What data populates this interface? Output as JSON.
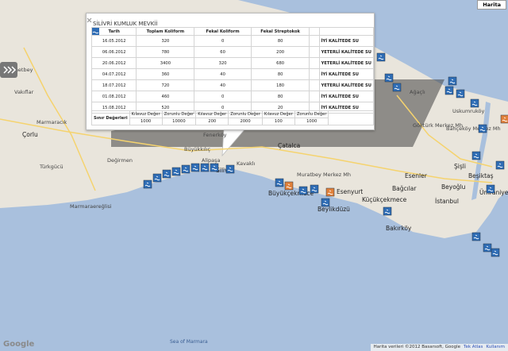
{
  "map_type": "Harita",
  "labels": [
    "Ahmetbey",
    "Vakıflar",
    "Marmaracık",
    "Çorlu",
    "Türkgücü",
    "Değirmen",
    "Marmaraereğlisi",
    "Büyükkılıç",
    "Alipaşa",
    "Fenerköy",
    "Silivri",
    "Kavaklı",
    "Çatalca",
    "Muratbey Merkez Mh",
    "Büyükçekmece",
    "Esenyurt",
    "Beylikdüzü",
    "Küçükçekmece",
    "Bakırköy",
    "Bağcılar",
    "Esenler",
    "Beyoğlu",
    "Beşiktaş",
    "İstanbul",
    "Ümraniye",
    "Şişli",
    "Ağaçlı",
    "Göktürk Merkez Mh",
    "Bahçeköy Merkez Mh",
    "Uskumruköy",
    "Sea of Marmara"
  ],
  "popup": {
    "title": "SİLİVRİ KUMLUK MEVKİİ",
    "columns": [
      "Tarih",
      "Toplam Koliform",
      "Fekal Koliform",
      "Fekal Streptokok"
    ],
    "rows": [
      [
        "16.05.2012",
        "320",
        "0",
        "80",
        "İYİ KALİTEDE SU"
      ],
      [
        "06.06.2012",
        "780",
        "60",
        "200",
        "YETERLİ KALİTEDE SU"
      ],
      [
        "20.06.2012",
        "3400",
        "320",
        "680",
        "YETERLİ KALİTEDE SU"
      ],
      [
        "04.07.2012",
        "360",
        "40",
        "80",
        "İYİ KALİTEDE SU"
      ],
      [
        "18.07.2012",
        "720",
        "40",
        "180",
        "YETERLİ KALİTEDE SU"
      ],
      [
        "01.08.2012",
        "460",
        "0",
        "80",
        "İYİ KALİTEDE SU"
      ],
      [
        "15.08.2012",
        "520",
        "0",
        "20",
        "İYİ KALİTEDE SU"
      ]
    ],
    "limits": {
      "label": "Sınır Değerleri",
      "groups": [
        {
          "headers": [
            "Kılavuz Değer",
            "Zorunlu Değer"
          ],
          "values": [
            "1000",
            "10000"
          ]
        },
        {
          "headers": [
            "Kılavuz Değer",
            "Zorunlu Değer"
          ],
          "values": [
            "200",
            "2000"
          ]
        },
        {
          "headers": [
            "Kılavuz Değer",
            "Zorunlu Değer"
          ],
          "values": [
            "100",
            "1000"
          ]
        }
      ]
    }
  },
  "footer": {
    "attribution": "Harita verileri ©2012 Basarsoft, Google",
    "links": [
      "Tek Atlas",
      "Kullanım"
    ],
    "logo": "Google"
  }
}
